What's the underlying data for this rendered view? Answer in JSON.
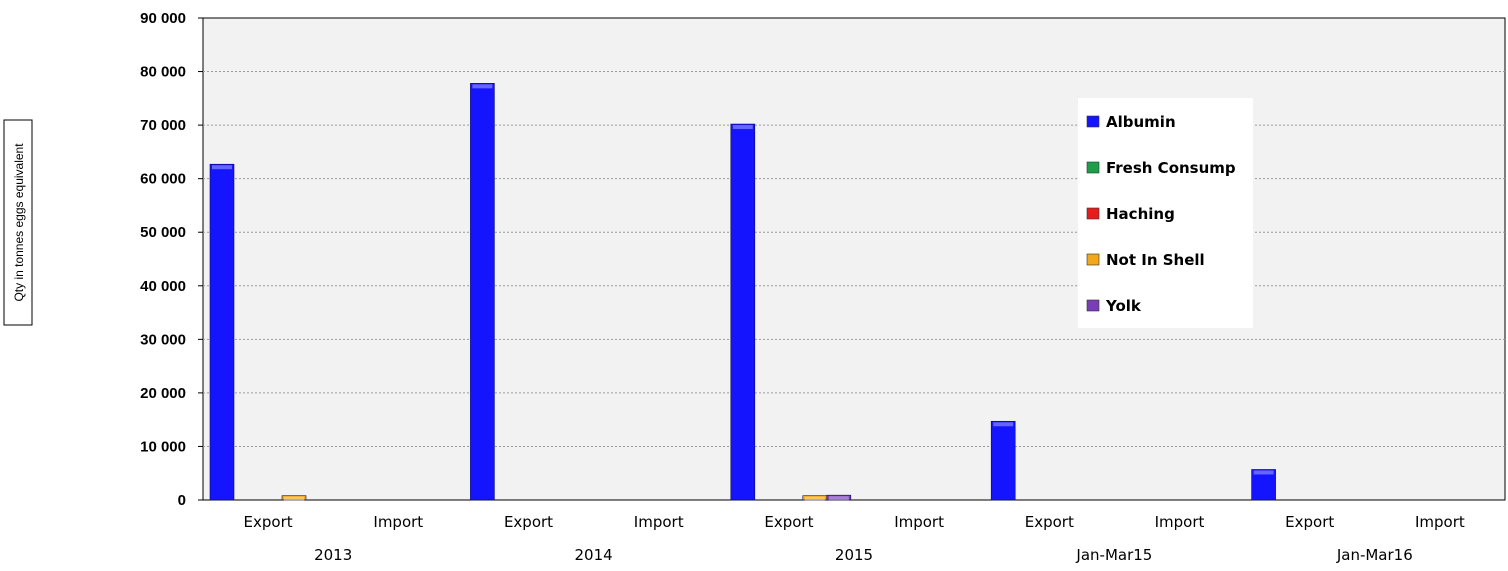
{
  "chart_data": {
    "type": "bar",
    "ylabel": "Qty in tonnes eggs equivalent",
    "ylim": [
      0,
      90000
    ],
    "yticks": [
      "0",
      "10 000",
      "20 000",
      "30 000",
      "40 000",
      "50 000",
      "60 000",
      "70 000",
      "80 000",
      "90 000"
    ],
    "grid": "horizontal dotted",
    "legend_position": "top-right",
    "groups": [
      "2013",
      "2014",
      "2015",
      "Jan-Mar15",
      "Jan-Mar16"
    ],
    "subcategories": [
      "Export",
      "Import"
    ],
    "categories": [
      "2013 Export",
      "2013 Import",
      "2014 Export",
      "2014 Import",
      "2015 Export",
      "2015 Import",
      "Jan-Mar15 Export",
      "Jan-Mar15 Import",
      "Jan-Mar16 Export",
      "Jan-Mar16 Import"
    ],
    "series": [
      {
        "name": "Albumin",
        "color": "#1414ff",
        "values": [
          62700,
          0,
          77800,
          0,
          70200,
          0,
          14700,
          0,
          5700,
          0
        ]
      },
      {
        "name": "Fresh Consump",
        "color": "#1aa04a",
        "values": [
          0,
          0,
          0,
          0,
          0,
          0,
          0,
          0,
          0,
          0
        ]
      },
      {
        "name": "Haching",
        "color": "#e81c1c",
        "values": [
          0,
          0,
          0,
          0,
          0,
          0,
          0,
          0,
          0,
          0
        ]
      },
      {
        "name": "Not In Shell",
        "color": "#f2a81a",
        "values": [
          800,
          0,
          0,
          0,
          800,
          0,
          0,
          0,
          0,
          0
        ]
      },
      {
        "name": "Yolk",
        "color": "#7a3db8",
        "values": [
          0,
          0,
          0,
          0,
          900,
          0,
          0,
          0,
          0,
          0
        ]
      }
    ]
  }
}
